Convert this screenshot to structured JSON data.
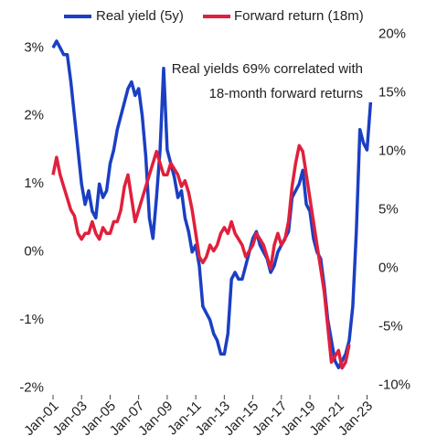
{
  "chart_data": {
    "type": "line",
    "annotation": [
      "Real yields 69% correlated with",
      "18-month forward returns"
    ],
    "x": [
      "2001-01",
      "2001-04",
      "2001-07",
      "2001-10",
      "2002-01",
      "2002-04",
      "2002-07",
      "2002-10",
      "2003-01",
      "2003-04",
      "2003-07",
      "2003-10",
      "2004-01",
      "2004-04",
      "2004-07",
      "2004-10",
      "2005-01",
      "2005-04",
      "2005-07",
      "2005-10",
      "2006-01",
      "2006-04",
      "2006-07",
      "2006-10",
      "2007-01",
      "2007-04",
      "2007-07",
      "2007-10",
      "2008-01",
      "2008-04",
      "2008-07",
      "2008-10",
      "2009-01",
      "2009-04",
      "2009-07",
      "2009-10",
      "2010-01",
      "2010-04",
      "2010-07",
      "2010-10",
      "2011-01",
      "2011-04",
      "2011-07",
      "2011-10",
      "2012-01",
      "2012-04",
      "2012-07",
      "2012-10",
      "2013-01",
      "2013-04",
      "2013-07",
      "2013-10",
      "2014-01",
      "2014-04",
      "2014-07",
      "2014-10",
      "2015-01",
      "2015-04",
      "2015-07",
      "2015-10",
      "2016-01",
      "2016-04",
      "2016-07",
      "2016-10",
      "2017-01",
      "2017-04",
      "2017-07",
      "2017-10",
      "2018-01",
      "2018-04",
      "2018-07",
      "2018-10",
      "2019-01",
      "2019-04",
      "2019-07",
      "2019-10",
      "2020-01",
      "2020-04",
      "2020-07",
      "2020-10",
      "2021-01",
      "2021-04",
      "2021-07",
      "2021-10",
      "2022-01",
      "2022-04",
      "2022-07",
      "2022-10",
      "2023-01",
      "2023-04"
    ],
    "series": [
      {
        "name": "Real yield (5y)",
        "color": "#1a3fc4",
        "axis": "y",
        "values": [
          3.0,
          3.1,
          3.0,
          2.9,
          2.9,
          2.5,
          2.0,
          1.5,
          1.0,
          0.7,
          0.9,
          0.6,
          0.5,
          1.0,
          0.8,
          0.9,
          1.3,
          1.5,
          1.8,
          2.0,
          2.2,
          2.4,
          2.5,
          2.3,
          2.4,
          2.0,
          1.4,
          0.5,
          0.2,
          0.8,
          1.5,
          2.7,
          1.5,
          1.3,
          1.1,
          0.8,
          0.9,
          0.5,
          0.3,
          0.0,
          0.1,
          -0.2,
          -0.8,
          -0.9,
          -1.0,
          -1.2,
          -1.3,
          -1.5,
          -1.5,
          -1.2,
          -0.4,
          -0.3,
          -0.4,
          -0.4,
          -0.2,
          0.0,
          0.2,
          0.3,
          0.1,
          0.0,
          -0.1,
          -0.3,
          -0.2,
          0.0,
          0.1,
          0.2,
          0.3,
          0.8,
          0.9,
          1.0,
          1.2,
          0.7,
          0.6,
          0.2,
          0.0,
          -0.1,
          -0.5,
          -1.0,
          -1.3,
          -1.6,
          -1.7,
          -1.6,
          -1.5,
          -1.3,
          -0.8,
          0.3,
          1.8,
          1.6,
          1.5,
          2.2
        ]
      },
      {
        "name": "Forward return (18m)",
        "color": "#e0203c",
        "axis": "y2",
        "values": [
          8,
          9.5,
          8,
          7,
          6,
          5,
          4.5,
          3,
          2.5,
          3,
          3,
          4,
          3,
          2.5,
          3.5,
          3,
          3,
          4,
          4,
          5,
          7,
          8,
          6,
          4,
          5,
          6,
          7,
          8,
          9,
          10,
          9,
          8,
          8,
          9,
          8.5,
          8,
          7,
          7.5,
          6.5,
          5,
          3,
          1,
          0.5,
          1,
          2,
          1.5,
          2,
          3,
          3.5,
          3,
          4,
          3,
          2.5,
          2,
          1,
          1.5,
          2,
          3,
          2.5,
          2,
          1,
          0,
          2,
          3,
          2,
          2.5,
          4,
          7,
          9,
          10.5,
          10,
          8,
          6,
          4,
          2,
          0,
          -2,
          -5,
          -8,
          -7.5,
          -7,
          -8.5,
          -8,
          -6.5,
          null,
          null,
          null,
          null,
          null,
          null
        ]
      }
    ],
    "xlim": [
      "2001-01",
      "2023-06"
    ],
    "xticks": [
      {
        "value": "2001-01",
        "label": "Jan-01"
      },
      {
        "value": "2003-01",
        "label": "Jan-03"
      },
      {
        "value": "2005-01",
        "label": "Jan-05"
      },
      {
        "value": "2007-01",
        "label": "Jan-07"
      },
      {
        "value": "2009-01",
        "label": "Jan-09"
      },
      {
        "value": "2011-01",
        "label": "Jan-11"
      },
      {
        "value": "2013-01",
        "label": "Jan-13"
      },
      {
        "value": "2015-01",
        "label": "Jan-15"
      },
      {
        "value": "2017-01",
        "label": "Jan-17"
      },
      {
        "value": "2019-01",
        "label": "Jan-19"
      },
      {
        "value": "2021-01",
        "label": "Jan-21"
      },
      {
        "value": "2023-01",
        "label": "Jan-23"
      }
    ],
    "ylim": [
      -2.1,
      3.3
    ],
    "yticks": [
      {
        "value": 3,
        "label": "3%"
      },
      {
        "value": 2,
        "label": "2%"
      },
      {
        "value": 1,
        "label": "1%"
      },
      {
        "value": 0,
        "label": "0%"
      },
      {
        "value": -1,
        "label": "-1%"
      },
      {
        "value": -2,
        "label": "-2%"
      }
    ],
    "y2lim": [
      -10.8,
      20.6
    ],
    "y2ticks": [
      {
        "value": 20,
        "label": "20%"
      },
      {
        "value": 15,
        "label": "15%"
      },
      {
        "value": 10,
        "label": "10%"
      },
      {
        "value": 5,
        "label": "5%"
      },
      {
        "value": 0,
        "label": "0%"
      },
      {
        "value": -5,
        "label": "-5%"
      },
      {
        "value": -10,
        "label": "-10%"
      }
    ]
  }
}
